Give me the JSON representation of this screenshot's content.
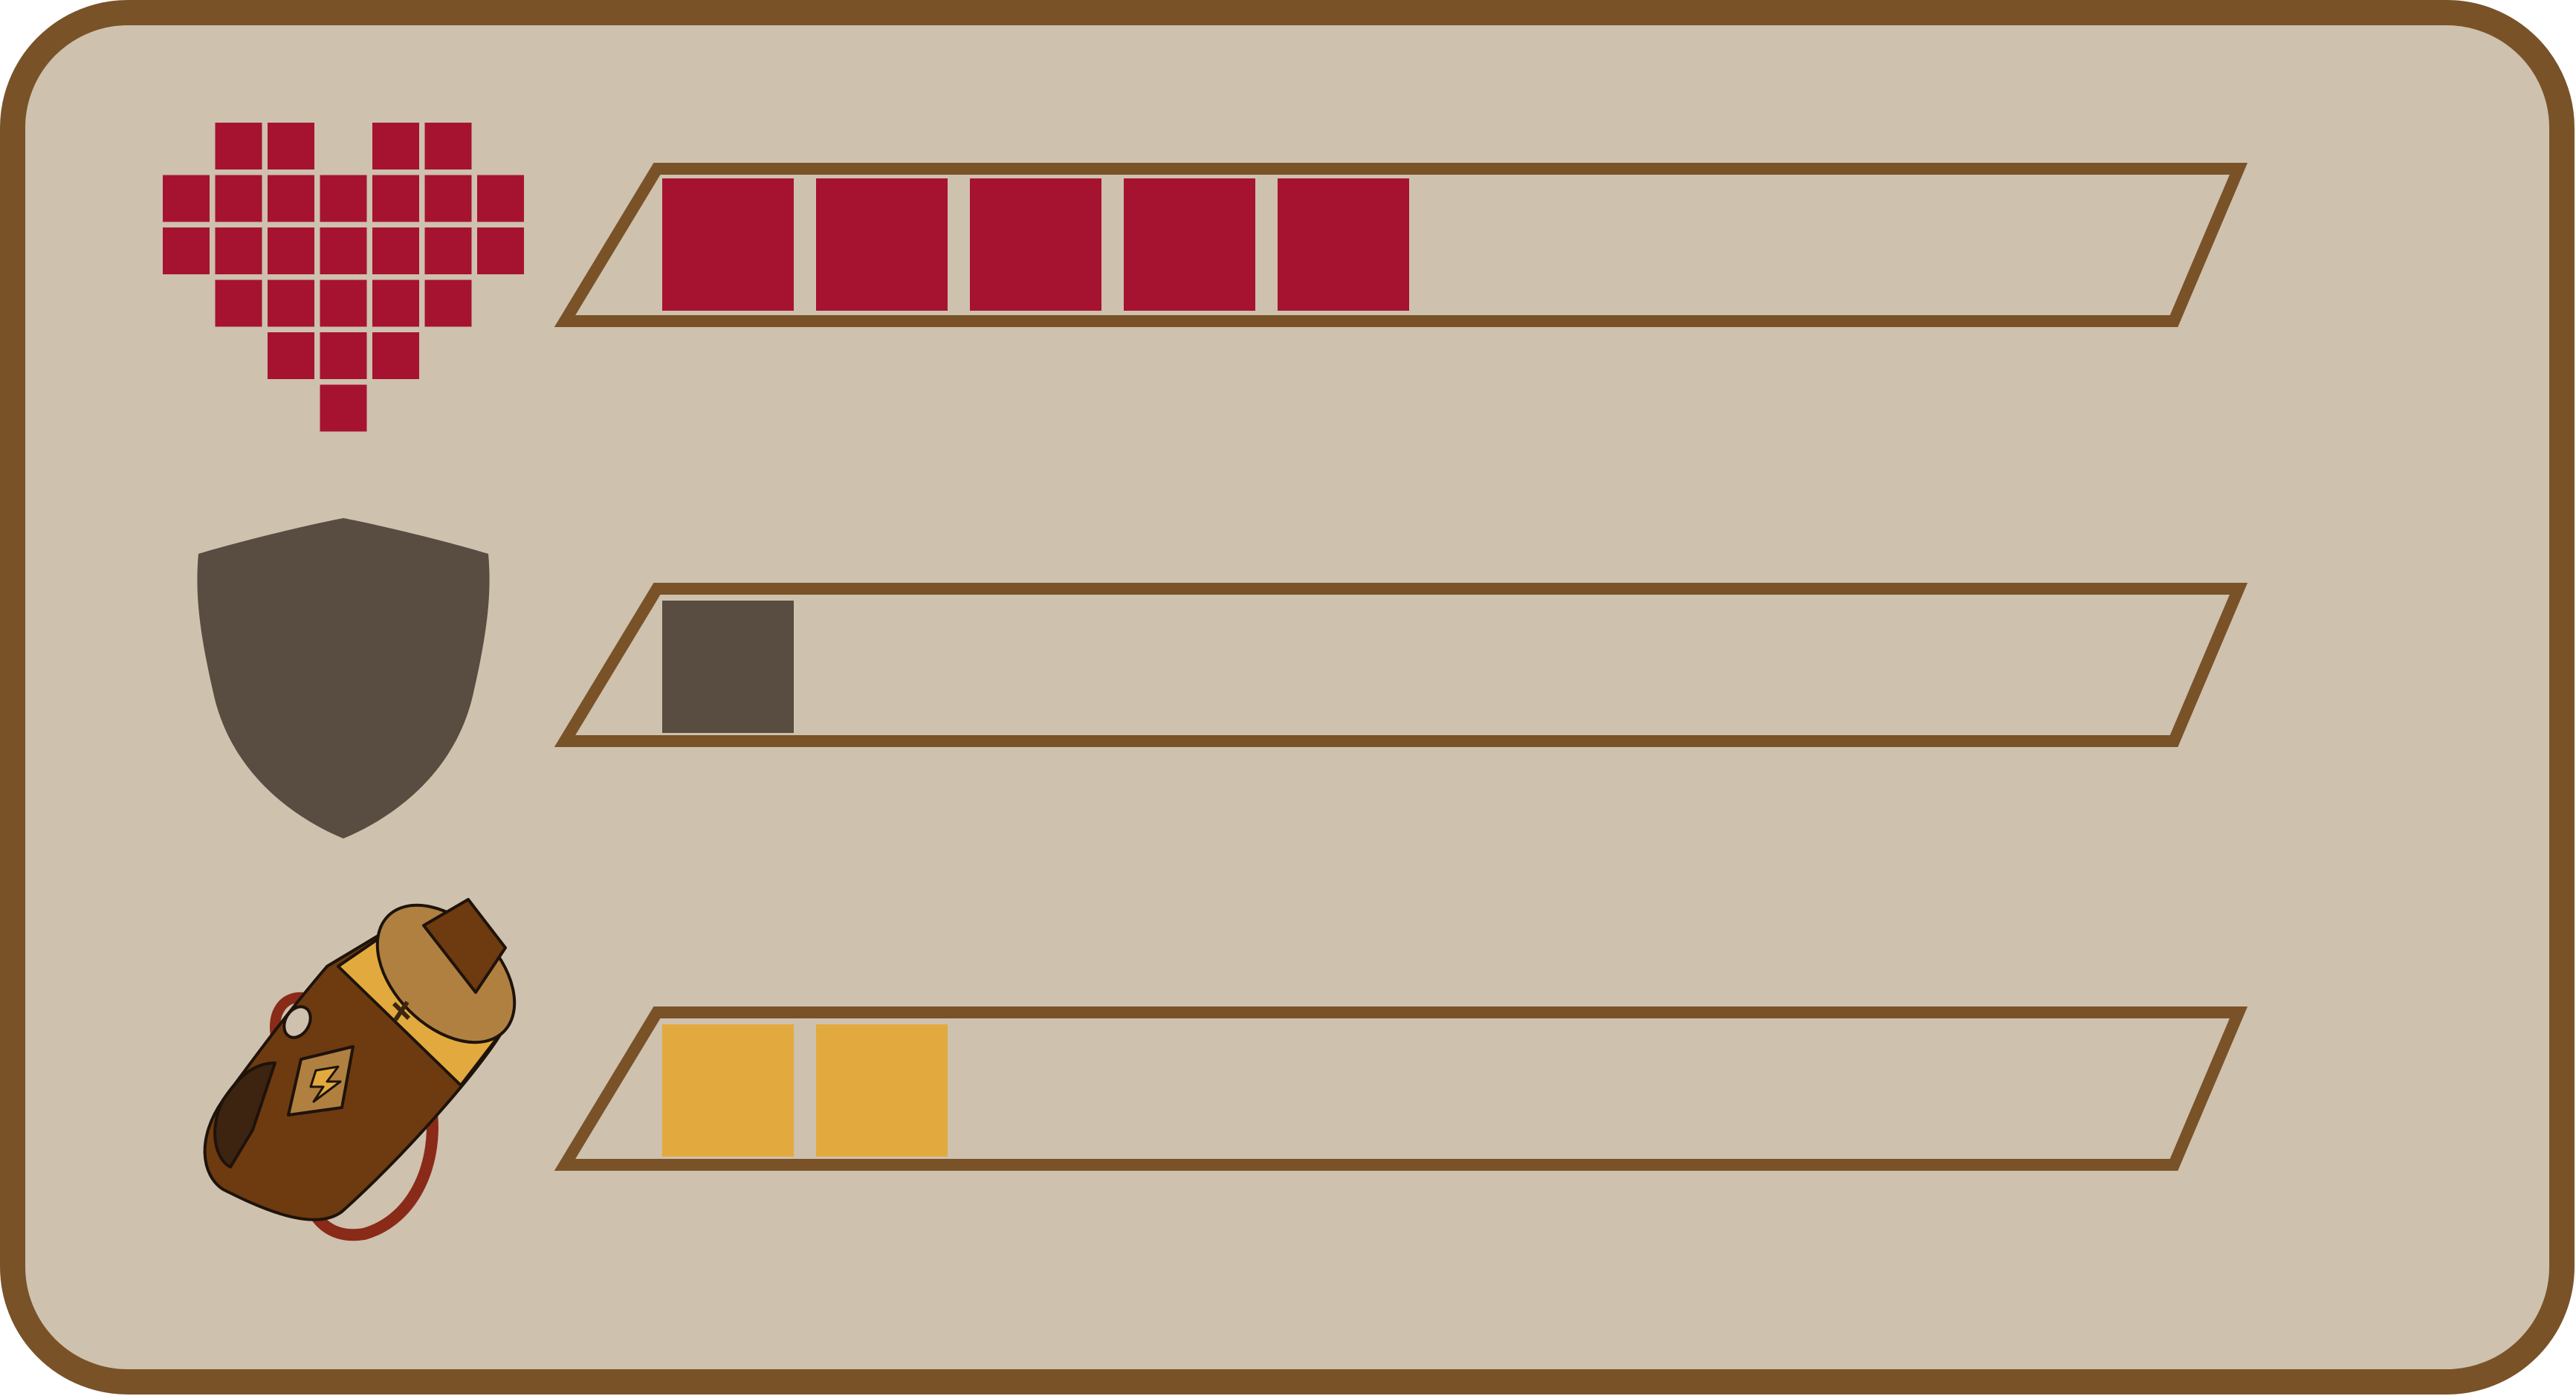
{
  "colors": {
    "panel_fill": "#cec1ae",
    "border": "#795228",
    "health": "#a61331",
    "armor": "#594c40",
    "energy": "#e2aa3e",
    "battery_body": "#6e3a10",
    "battery_band": "#e2aa3e",
    "battery_cap": "#b08040",
    "battery_cable": "#8a2a18",
    "outline": "#1e130a"
  },
  "stats": [
    {
      "name": "health",
      "icon": "pixel-heart-icon",
      "filled": 5,
      "segments": 11,
      "color": "#a61331"
    },
    {
      "name": "armor",
      "icon": "shield-icon",
      "filled": 1,
      "segments": 11,
      "color": "#594c40"
    },
    {
      "name": "energy",
      "icon": "battery-icon",
      "filled": 2,
      "segments": 11,
      "color": "#e2aa3e"
    }
  ]
}
